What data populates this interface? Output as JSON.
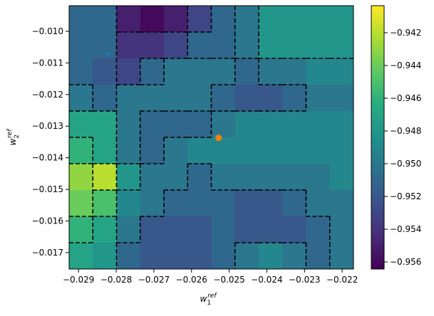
{
  "chart_data": {
    "type": "heatmap",
    "colormap": "viridis",
    "xlabel": {
      "base": "w",
      "sub": "1",
      "sup": "ref"
    },
    "ylabel": {
      "base": "w",
      "sub": "2",
      "sup": "ref"
    },
    "xlim": [
      -0.02925,
      -0.0217
    ],
    "ylim": [
      -0.01752,
      -0.00919
    ],
    "clim": [
      -0.95643,
      -0.94035
    ],
    "contour_step": 0.002,
    "xticks": [
      {
        "value": -0.029,
        "label": "−0.029"
      },
      {
        "value": -0.028,
        "label": "−0.028"
      },
      {
        "value": -0.027,
        "label": "−0.027"
      },
      {
        "value": -0.026,
        "label": "−0.026"
      },
      {
        "value": -0.025,
        "label": "−0.025"
      },
      {
        "value": -0.024,
        "label": "−0.024"
      },
      {
        "value": -0.023,
        "label": "−0.023"
      },
      {
        "value": -0.022,
        "label": "−0.022"
      }
    ],
    "yticks": [
      {
        "value": -0.01,
        "label": "−0.010"
      },
      {
        "value": -0.011,
        "label": "−0.011"
      },
      {
        "value": -0.012,
        "label": "−0.012"
      },
      {
        "value": -0.013,
        "label": "−0.013"
      },
      {
        "value": -0.014,
        "label": "−0.014"
      },
      {
        "value": -0.015,
        "label": "−0.015"
      },
      {
        "value": -0.016,
        "label": "−0.016"
      },
      {
        "value": -0.017,
        "label": "−0.017"
      }
    ],
    "cticks": [
      {
        "value": -0.942,
        "label": "−0.942"
      },
      {
        "value": -0.944,
        "label": "−0.944"
      },
      {
        "value": -0.946,
        "label": "−0.946"
      },
      {
        "value": -0.948,
        "label": "−0.948"
      },
      {
        "value": -0.95,
        "label": "−0.950"
      },
      {
        "value": -0.952,
        "label": "−0.952"
      },
      {
        "value": -0.954,
        "label": "−0.954"
      },
      {
        "value": -0.956,
        "label": "−0.956"
      }
    ],
    "z": [
      [
        -0.951,
        -0.951,
        -0.955,
        -0.956,
        -0.955,
        -0.953,
        -0.951,
        -0.95,
        -0.948,
        -0.948,
        -0.948,
        -0.948
      ],
      [
        -0.951,
        -0.951,
        -0.954,
        -0.954,
        -0.953,
        -0.951,
        -0.951,
        -0.95,
        -0.948,
        -0.948,
        -0.948,
        -0.948
      ],
      [
        -0.951,
        -0.952,
        -0.953,
        -0.951,
        -0.95,
        -0.95,
        -0.95,
        -0.951,
        -0.95,
        -0.95,
        -0.949,
        -0.949
      ],
      [
        -0.95,
        -0.951,
        -0.95,
        -0.95,
        -0.95,
        -0.95,
        -0.951,
        -0.952,
        -0.952,
        -0.951,
        -0.95,
        -0.95
      ],
      [
        -0.947,
        -0.947,
        -0.95,
        -0.951,
        -0.951,
        -0.951,
        -0.95,
        -0.949,
        -0.949,
        -0.949,
        -0.949,
        -0.949
      ],
      [
        -0.946,
        -0.947,
        -0.95,
        -0.951,
        -0.95,
        -0.949,
        -0.949,
        -0.949,
        -0.949,
        -0.949,
        -0.949,
        -0.949
      ],
      [
        -0.943,
        -0.942,
        -0.948,
        -0.95,
        -0.95,
        -0.951,
        -0.95,
        -0.95,
        -0.95,
        -0.95,
        -0.95,
        -0.949
      ],
      [
        -0.944,
        -0.945,
        -0.949,
        -0.95,
        -0.951,
        -0.951,
        -0.951,
        -0.952,
        -0.952,
        -0.951,
        -0.95,
        -0.95
      ],
      [
        -0.946,
        -0.947,
        -0.95,
        -0.952,
        -0.952,
        -0.952,
        -0.951,
        -0.952,
        -0.952,
        -0.952,
        -0.951,
        -0.95
      ],
      [
        -0.947,
        -0.948,
        -0.951,
        -0.952,
        -0.952,
        -0.952,
        -0.951,
        -0.95,
        -0.949,
        -0.95,
        -0.951,
        -0.95
      ]
    ],
    "markers": [
      {
        "shape": "star",
        "x": -0.02822,
        "y": -0.0107,
        "color": "#1f77b4"
      },
      {
        "shape": "circle",
        "x": -0.02528,
        "y": -0.01337,
        "color": "#ff7f0e"
      }
    ]
  }
}
